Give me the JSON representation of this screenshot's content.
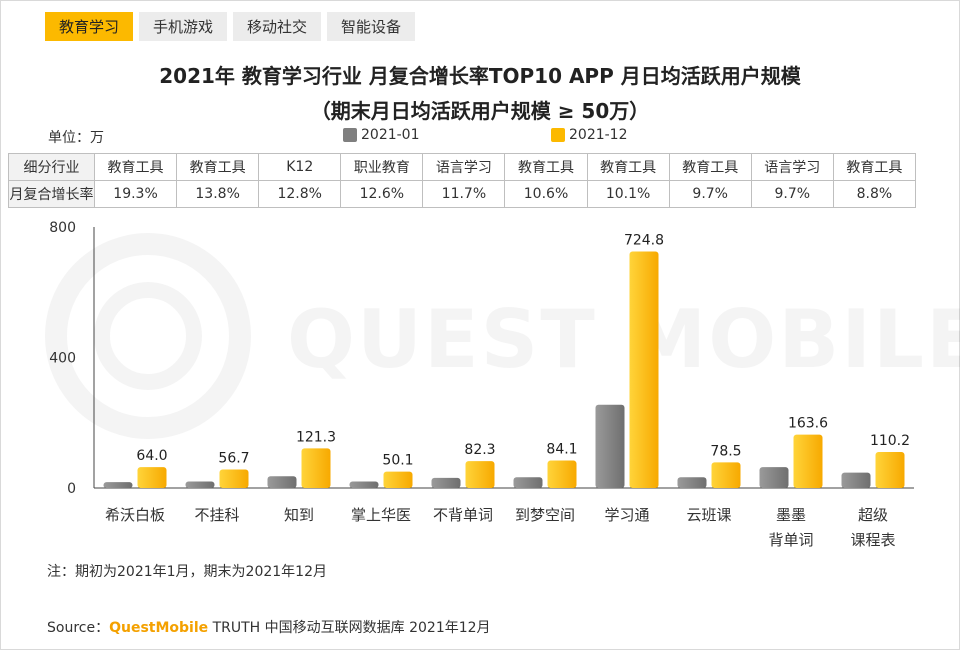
{
  "tabs": [
    {
      "label": "教育学习",
      "active": true
    },
    {
      "label": "手机游戏",
      "active": false
    },
    {
      "label": "移动社交",
      "active": false
    },
    {
      "label": "智能设备",
      "active": false
    }
  ],
  "title_line1": "2021年 教育学习行业 月复合增长率TOP10 APP 月日均活跃用户规模",
  "title_line2": "（期末月日均活跃用户规模 ≥ 50万）",
  "unit_label": "单位：万",
  "table": {
    "row1_header": "细分行业",
    "row2_header": "月复合增长率",
    "categories": [
      "教育工具",
      "教育工具",
      "K12",
      "职业教育",
      "语言学习",
      "教育工具",
      "教育工具",
      "教育工具",
      "语言学习",
      "教育工具"
    ],
    "growth": [
      "19.3%",
      "13.8%",
      "12.8%",
      "12.6%",
      "11.7%",
      "10.6%",
      "10.1%",
      "9.7%",
      "9.7%",
      "8.8%"
    ]
  },
  "watermark": "QUEST MOBILE",
  "note": "注：期初为2021年1月，期末为2021年12月",
  "source": {
    "prefix": "Source：",
    "brand": "QuestMobile",
    "suffix": " TRUTH 中国移动互联网数据库 2021年12月"
  },
  "colors": {
    "series_2021_01": "#7f7f7f",
    "series_2021_12": "#fcb900",
    "accent": "#fcb900"
  },
  "chart_data": {
    "type": "bar",
    "title": "2021年 教育学习行业 月复合增长率TOP10 APP 月日均活跃用户规模",
    "ylabel": "单位：万",
    "ylim": [
      0,
      800
    ],
    "yticks": [
      0,
      400,
      800
    ],
    "legend_position": "top",
    "categories": [
      [
        "希沃白板"
      ],
      [
        "不挂科"
      ],
      [
        "知到"
      ],
      [
        "掌上华医"
      ],
      [
        "不背单词"
      ],
      [
        "到梦空间"
      ],
      [
        "学习通"
      ],
      [
        "云班课"
      ],
      [
        "墨墨",
        "背单词"
      ],
      [
        "超级",
        "课程表"
      ]
    ],
    "series": [
      {
        "name": "2021-01",
        "values": [
          18,
          20,
          36,
          20,
          31,
          33,
          255,
          33,
          64,
          47
        ],
        "labels": [
          "",
          "",
          "",
          "",
          "",
          "",
          "",
          "",
          "",
          ""
        ]
      },
      {
        "name": "2021-12",
        "values": [
          64.0,
          56.7,
          121.3,
          50.1,
          82.3,
          84.1,
          724.8,
          78.5,
          163.6,
          110.2
        ],
        "labels": [
          "64.0",
          "56.7",
          "121.3",
          "50.1",
          "82.3",
          "84.1",
          "724.8",
          "78.5",
          "163.6",
          "110.2"
        ]
      }
    ]
  }
}
